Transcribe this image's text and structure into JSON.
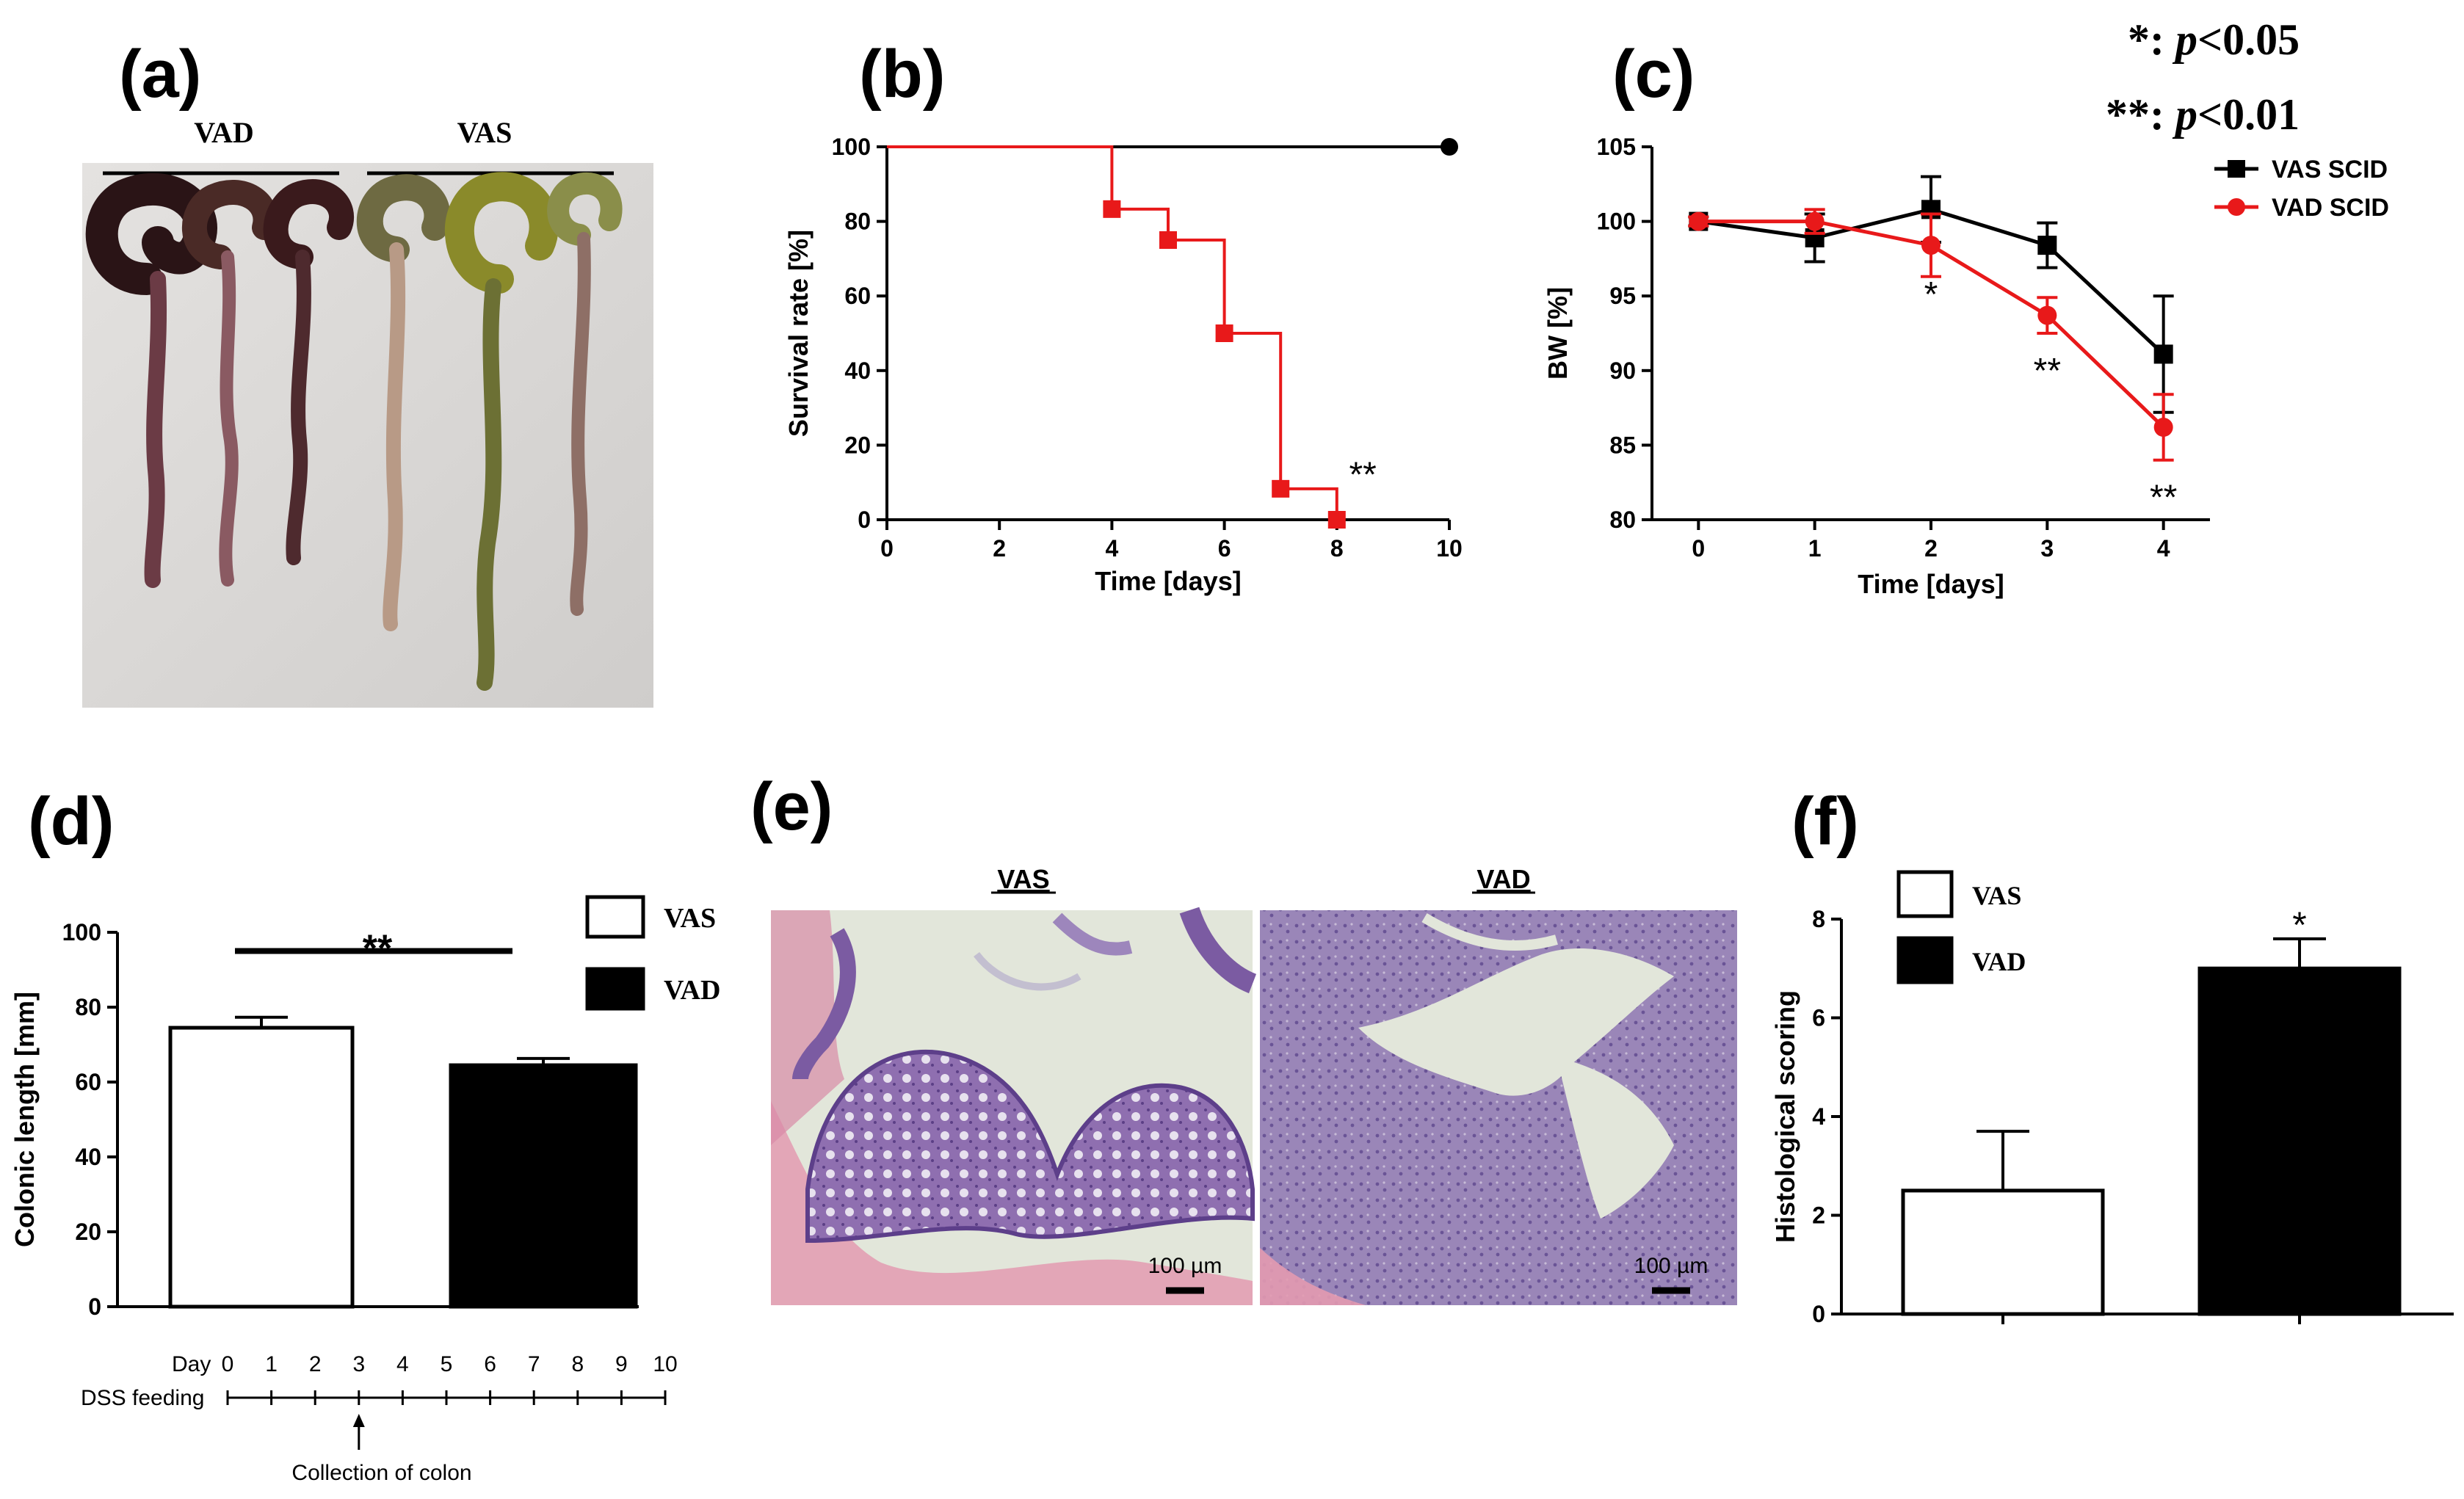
{
  "panels": {
    "a": {
      "label": "(a)",
      "groups": [
        "VAD",
        "VAS"
      ]
    },
    "b": {
      "label": "(b)"
    },
    "c": {
      "label": "(c)"
    },
    "d": {
      "label": "(d)"
    },
    "e": {
      "label": "(e)",
      "left_title": "VAS",
      "right_title": "VAD",
      "scale_bar": "100 µm"
    },
    "f": {
      "label": "(f)"
    }
  },
  "significance_legend": {
    "line1_stars": "*: ",
    "line1_p": "p",
    "line1_rest": "<0.05",
    "line2_stars": "**: ",
    "line2_p": "p",
    "line2_rest": "<0.01"
  },
  "timeline": {
    "day_label": "Day",
    "days": [
      "0",
      "1",
      "2",
      "3",
      "4",
      "5",
      "6",
      "7",
      "8",
      "9",
      "10"
    ],
    "row_label": "DSS feeding",
    "arrow_day": 3,
    "arrow_label": "Collection of colon"
  },
  "colors": {
    "vas": "#000000",
    "vad": "#e8191a",
    "photo_bg": "#d8d6d4",
    "histology_bg": "#e2e6da"
  },
  "chart_data": [
    {
      "id": "b",
      "type": "line",
      "step": true,
      "xlabel": "Time [days]",
      "ylabel": "Survival rate [%]",
      "xlim": [
        0,
        10
      ],
      "ylim": [
        0,
        100
      ],
      "xticks": [
        "0",
        "2",
        "4",
        "6",
        "8",
        "10"
      ],
      "yticks": [
        "0",
        "20",
        "40",
        "60",
        "80",
        "100"
      ],
      "series": [
        {
          "color": "#000000",
          "marker": "circle",
          "x": [
            0,
            10
          ],
          "y": [
            100,
            100
          ],
          "marker_x": [
            10
          ],
          "marker_y": [
            100
          ]
        },
        {
          "color": "#e8191a",
          "marker": "square",
          "x": [
            0,
            4,
            5,
            6,
            7,
            8
          ],
          "y": [
            100,
            83.3,
            75,
            50,
            8.3,
            0
          ],
          "marker_x": [
            4,
            5,
            6,
            7,
            8
          ],
          "marker_y": [
            83.3,
            75,
            50,
            8.3,
            0
          ]
        }
      ],
      "annotations": [
        {
          "x": 8.2,
          "y": 7,
          "text": "**"
        }
      ]
    },
    {
      "id": "c",
      "type": "line",
      "xlabel": "Time [days]",
      "ylabel": "BW [%]",
      "xlim": [
        -0.4,
        4.4
      ],
      "ylim": [
        80,
        105
      ],
      "xticks": [
        "0",
        "1",
        "2",
        "3",
        "4"
      ],
      "yticks": [
        "80",
        "85",
        "90",
        "95",
        "100",
        "105"
      ],
      "series": [
        {
          "name": "VAS SCID",
          "color": "#000000",
          "marker": "square",
          "x": [
            0,
            1,
            2,
            3,
            4
          ],
          "y": [
            100,
            98.9,
            100.8,
            98.4,
            91.1
          ],
          "err": [
            0.3,
            1.6,
            2.2,
            1.5,
            3.9
          ]
        },
        {
          "name": "VAD SCID",
          "color": "#e8191a",
          "marker": "circle",
          "x": [
            0,
            1,
            2,
            3,
            4
          ],
          "y": [
            100,
            100,
            98.4,
            93.7,
            86.2
          ],
          "err": [
            0.3,
            0.8,
            2.1,
            1.2,
            2.2
          ]
        }
      ],
      "annotations": [
        {
          "x": 2,
          "y": 95.1,
          "text": "*"
        },
        {
          "x": 3,
          "y": 90.0,
          "text": "**"
        },
        {
          "x": 4,
          "y": 81.5,
          "text": "**"
        }
      ],
      "legend": "top-right"
    },
    {
      "id": "d",
      "type": "bar",
      "ylabel": "Colonic length [mm]",
      "ylim": [
        0,
        100
      ],
      "yticks": [
        "0",
        "20",
        "40",
        "60",
        "80",
        "100"
      ],
      "categories": [
        "VAS",
        "VAD"
      ],
      "values": [
        74.5,
        64.5
      ],
      "err": [
        2.8,
        1.8
      ],
      "fills": [
        "#ffffff",
        "#000000"
      ],
      "significance": "**",
      "legend": "right"
    },
    {
      "id": "f",
      "type": "bar",
      "ylabel": "Histological scoring",
      "ylim": [
        0,
        8
      ],
      "yticks": [
        "0",
        "2",
        "4",
        "6",
        "8"
      ],
      "categories": [
        "VAS",
        "VAD"
      ],
      "values": [
        2.5,
        7.0
      ],
      "err": [
        1.2,
        0.6
      ],
      "fills": [
        "#ffffff",
        "#000000"
      ],
      "significance": "*",
      "legend": "top-left"
    }
  ]
}
